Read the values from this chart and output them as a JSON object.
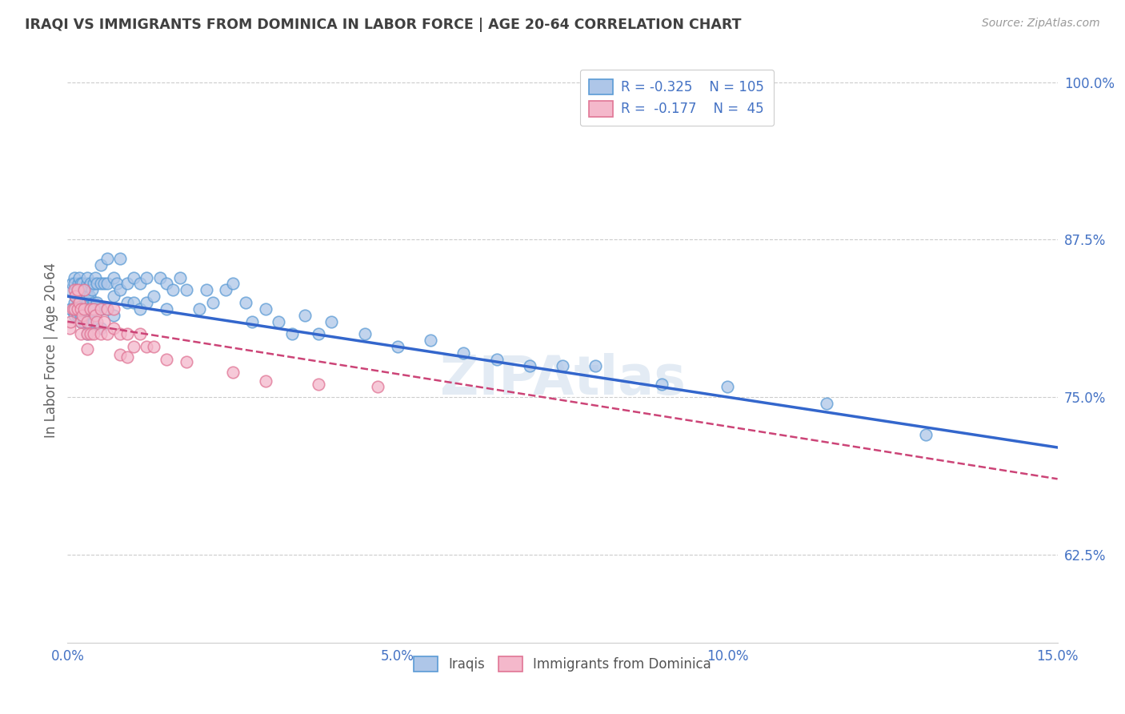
{
  "title": "IRAQI VS IMMIGRANTS FROM DOMINICA IN LABOR FORCE | AGE 20-64 CORRELATION CHART",
  "source": "Source: ZipAtlas.com",
  "ylabel": "In Labor Force | Age 20-64",
  "xlim": [
    0.0,
    0.15
  ],
  "ylim": [
    0.555,
    1.02
  ],
  "yticks": [
    0.625,
    0.75,
    0.875,
    1.0
  ],
  "yticklabels": [
    "62.5%",
    "75.0%",
    "87.5%",
    "100.0%"
  ],
  "xticks": [
    0.0,
    0.05,
    0.1,
    0.15
  ],
  "xticklabels": [
    "0.0%",
    "5.0%",
    "10.0%",
    "15.0%"
  ],
  "legend_text1": "R = -0.325   N = 105",
  "legend_text2": "R =  -0.177   N =  45",
  "iraqis_color": "#aec6e8",
  "iraqis_edge_color": "#5b9bd5",
  "dominica_color": "#f4b8cb",
  "dominica_edge_color": "#e07595",
  "trendline_iraqis_color": "#3366cc",
  "trendline_dominica_color": "#cc4477",
  "background_color": "#ffffff",
  "grid_color": "#cccccc",
  "axis_color": "#4472c4",
  "title_color": "#404040",
  "ylabel_color": "#606060",
  "watermark_color": "#cddcec",
  "iraqis_x": [
    0.0005,
    0.0005,
    0.0007,
    0.001,
    0.001,
    0.001,
    0.001,
    0.0012,
    0.0012,
    0.0014,
    0.0015,
    0.0015,
    0.0015,
    0.0016,
    0.0016,
    0.0018,
    0.0018,
    0.002,
    0.002,
    0.002,
    0.002,
    0.002,
    0.0022,
    0.0022,
    0.0023,
    0.0023,
    0.0025,
    0.0025,
    0.0025,
    0.003,
    0.003,
    0.003,
    0.003,
    0.003,
    0.003,
    0.003,
    0.0032,
    0.0032,
    0.0034,
    0.0035,
    0.0035,
    0.0035,
    0.0037,
    0.0038,
    0.004,
    0.004,
    0.004,
    0.0042,
    0.0042,
    0.0045,
    0.0045,
    0.005,
    0.005,
    0.005,
    0.005,
    0.0055,
    0.006,
    0.006,
    0.006,
    0.007,
    0.007,
    0.007,
    0.0075,
    0.008,
    0.008,
    0.009,
    0.009,
    0.01,
    0.01,
    0.011,
    0.011,
    0.012,
    0.012,
    0.013,
    0.014,
    0.015,
    0.015,
    0.016,
    0.017,
    0.018,
    0.02,
    0.021,
    0.022,
    0.024,
    0.025,
    0.027,
    0.028,
    0.03,
    0.032,
    0.034,
    0.036,
    0.038,
    0.04,
    0.045,
    0.05,
    0.055,
    0.06,
    0.065,
    0.07,
    0.075,
    0.08,
    0.09,
    0.1,
    0.115,
    0.13
  ],
  "iraqis_y": [
    0.82,
    0.835,
    0.84,
    0.845,
    0.84,
    0.825,
    0.815,
    0.83,
    0.82,
    0.835,
    0.83,
    0.82,
    0.815,
    0.84,
    0.825,
    0.845,
    0.83,
    0.84,
    0.835,
    0.825,
    0.815,
    0.81,
    0.84,
    0.825,
    0.83,
    0.815,
    0.835,
    0.82,
    0.81,
    0.84,
    0.83,
    0.82,
    0.81,
    0.8,
    0.845,
    0.825,
    0.838,
    0.82,
    0.83,
    0.84,
    0.82,
    0.808,
    0.835,
    0.82,
    0.84,
    0.825,
    0.81,
    0.845,
    0.82,
    0.84,
    0.825,
    0.855,
    0.84,
    0.82,
    0.805,
    0.84,
    0.86,
    0.84,
    0.82,
    0.845,
    0.83,
    0.815,
    0.84,
    0.86,
    0.835,
    0.84,
    0.825,
    0.845,
    0.825,
    0.84,
    0.82,
    0.845,
    0.825,
    0.83,
    0.845,
    0.84,
    0.82,
    0.835,
    0.845,
    0.835,
    0.82,
    0.835,
    0.825,
    0.835,
    0.84,
    0.825,
    0.81,
    0.82,
    0.81,
    0.8,
    0.815,
    0.8,
    0.81,
    0.8,
    0.79,
    0.795,
    0.785,
    0.78,
    0.775,
    0.775,
    0.775,
    0.76,
    0.758,
    0.745,
    0.72
  ],
  "dominica_x": [
    0.0003,
    0.0005,
    0.0008,
    0.001,
    0.001,
    0.0012,
    0.0015,
    0.0015,
    0.0018,
    0.002,
    0.002,
    0.002,
    0.0022,
    0.0025,
    0.0025,
    0.003,
    0.003,
    0.003,
    0.0035,
    0.0035,
    0.004,
    0.004,
    0.0042,
    0.0045,
    0.005,
    0.005,
    0.0055,
    0.006,
    0.006,
    0.007,
    0.007,
    0.008,
    0.008,
    0.009,
    0.009,
    0.01,
    0.011,
    0.012,
    0.013,
    0.015,
    0.018,
    0.025,
    0.03,
    0.038,
    0.047
  ],
  "dominica_y": [
    0.805,
    0.81,
    0.82,
    0.835,
    0.82,
    0.83,
    0.835,
    0.82,
    0.825,
    0.82,
    0.81,
    0.8,
    0.815,
    0.835,
    0.82,
    0.81,
    0.8,
    0.788,
    0.82,
    0.8,
    0.82,
    0.8,
    0.815,
    0.81,
    0.82,
    0.8,
    0.81,
    0.82,
    0.8,
    0.805,
    0.82,
    0.8,
    0.784,
    0.8,
    0.782,
    0.79,
    0.8,
    0.79,
    0.79,
    0.78,
    0.778,
    0.77,
    0.763,
    0.76,
    0.758
  ],
  "trendline_iraqis_x0": 0.0,
  "trendline_iraqis_y0": 0.83,
  "trendline_iraqis_x1": 0.15,
  "trendline_iraqis_y1": 0.71,
  "trendline_dominica_x0": 0.0,
  "trendline_dominica_y0": 0.81,
  "trendline_dominica_x1": 0.15,
  "trendline_dominica_y1": 0.685
}
